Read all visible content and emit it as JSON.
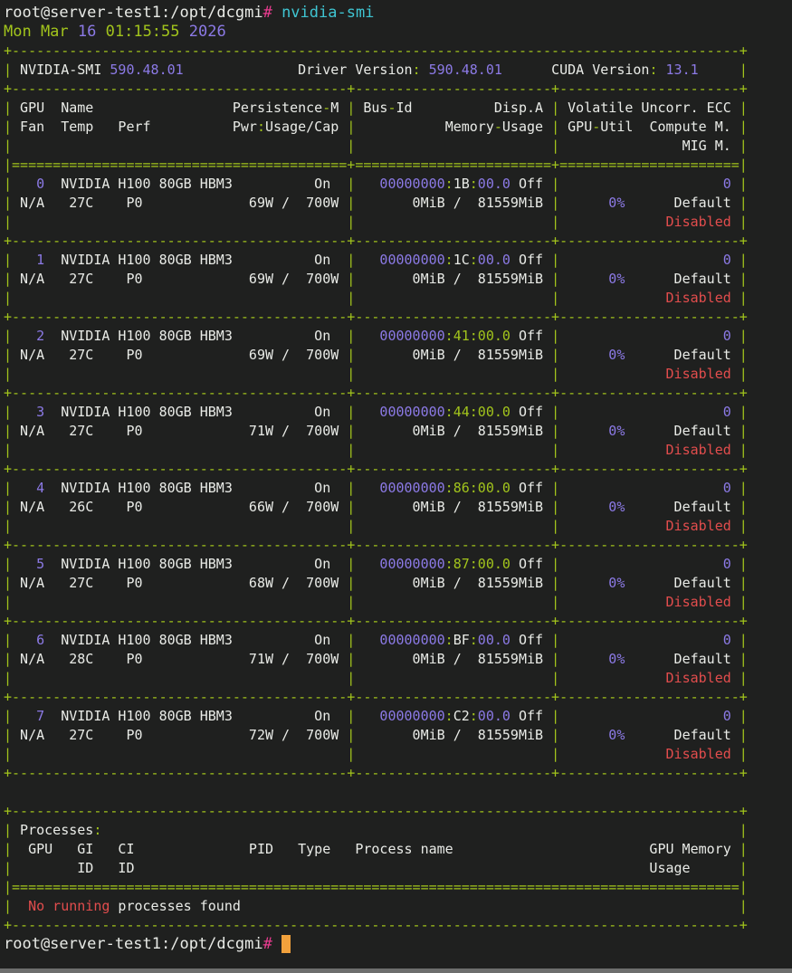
{
  "colors": {
    "background": "#1f201f",
    "foreground": "#e9ebe7",
    "border_green": "#a2c41c",
    "number_purple": "#8c7ae6",
    "alert_red": "#e24d4d",
    "command_cyan": "#3fc5d2",
    "prompt_magenta": "#e93c8f",
    "cursor_orange": "#f1a13c"
  },
  "prompt": {
    "user_host_path": "root@server-test1:/opt/dcgmi",
    "symbol": "#",
    "command": "nvidia-smi"
  },
  "datetime": {
    "day_month": "Mon Mar",
    "date": "16",
    "time": "01:15:55",
    "year": "2026"
  },
  "smi_header": {
    "title": "NVIDIA-SMI",
    "version": "590.48.01",
    "driver_label": "Driver Version",
    "driver_version": "590.48.01",
    "cuda_label": "CUDA Version",
    "cuda_version": "13.1"
  },
  "table_headers": {
    "gpu_name": " GPU  Name",
    "persistence": "Persistence-M",
    "fan_temp_perf": " Fan  Temp   Perf",
    "pwr": "Pwr:Usage/Cap",
    "bus": "Bus-Id",
    "disp": "Disp.A",
    "memory": "Memory-Usage",
    "volatile": "Volatile Uncorr. ECC",
    "util": "GPU-Util",
    "compute": "Compute M.",
    "mig": "MIG M."
  },
  "gpus": [
    {
      "index": "0",
      "name": "NVIDIA H100 80GB HBM3",
      "persistence": "On",
      "bus_id": "00000000:1B:00.0",
      "disp": "Off",
      "ecc": "0",
      "fan": "N/A",
      "temp": "27C",
      "perf": "P0",
      "power": "69W",
      "power_cap": "700W",
      "mem_used": "0MiB",
      "mem_total": "81559MiB",
      "util": "0%",
      "compute_mode": "Default",
      "mig": "Disabled"
    },
    {
      "index": "1",
      "name": "NVIDIA H100 80GB HBM3",
      "persistence": "On",
      "bus_id": "00000000:1C:00.0",
      "disp": "Off",
      "ecc": "0",
      "fan": "N/A",
      "temp": "27C",
      "perf": "P0",
      "power": "69W",
      "power_cap": "700W",
      "mem_used": "0MiB",
      "mem_total": "81559MiB",
      "util": "0%",
      "compute_mode": "Default",
      "mig": "Disabled"
    },
    {
      "index": "2",
      "name": "NVIDIA H100 80GB HBM3",
      "persistence": "On",
      "bus_id": "00000000:41:00.0",
      "disp": "Off",
      "ecc": "0",
      "fan": "N/A",
      "temp": "27C",
      "perf": "P0",
      "power": "69W",
      "power_cap": "700W",
      "mem_used": "0MiB",
      "mem_total": "81559MiB",
      "util": "0%",
      "compute_mode": "Default",
      "mig": "Disabled"
    },
    {
      "index": "3",
      "name": "NVIDIA H100 80GB HBM3",
      "persistence": "On",
      "bus_id": "00000000:44:00.0",
      "disp": "Off",
      "ecc": "0",
      "fan": "N/A",
      "temp": "27C",
      "perf": "P0",
      "power": "71W",
      "power_cap": "700W",
      "mem_used": "0MiB",
      "mem_total": "81559MiB",
      "util": "0%",
      "compute_mode": "Default",
      "mig": "Disabled"
    },
    {
      "index": "4",
      "name": "NVIDIA H100 80GB HBM3",
      "persistence": "On",
      "bus_id": "00000000:86:00.0",
      "disp": "Off",
      "ecc": "0",
      "fan": "N/A",
      "temp": "26C",
      "perf": "P0",
      "power": "66W",
      "power_cap": "700W",
      "mem_used": "0MiB",
      "mem_total": "81559MiB",
      "util": "0%",
      "compute_mode": "Default",
      "mig": "Disabled"
    },
    {
      "index": "5",
      "name": "NVIDIA H100 80GB HBM3",
      "persistence": "On",
      "bus_id": "00000000:87:00.0",
      "disp": "Off",
      "ecc": "0",
      "fan": "N/A",
      "temp": "27C",
      "perf": "P0",
      "power": "68W",
      "power_cap": "700W",
      "mem_used": "0MiB",
      "mem_total": "81559MiB",
      "util": "0%",
      "compute_mode": "Default",
      "mig": "Disabled"
    },
    {
      "index": "6",
      "name": "NVIDIA H100 80GB HBM3",
      "persistence": "On",
      "bus_id": "00000000:BF:00.0",
      "disp": "Off",
      "ecc": "0",
      "fan": "N/A",
      "temp": "28C",
      "perf": "P0",
      "power": "71W",
      "power_cap": "700W",
      "mem_used": "0MiB",
      "mem_total": "81559MiB",
      "util": "0%",
      "compute_mode": "Default",
      "mig": "Disabled"
    },
    {
      "index": "7",
      "name": "NVIDIA H100 80GB HBM3",
      "persistence": "On",
      "bus_id": "00000000:C2:00.0",
      "disp": "Off",
      "ecc": "0",
      "fan": "N/A",
      "temp": "27C",
      "perf": "P0",
      "power": "72W",
      "power_cap": "700W",
      "mem_used": "0MiB",
      "mem_total": "81559MiB",
      "util": "0%",
      "compute_mode": "Default",
      "mig": "Disabled"
    }
  ],
  "processes": {
    "title": "Processes",
    "header_row1_left": "  GPU   GI   CI              PID   Type   Process name",
    "header_row1_right": "GPU Memory",
    "header_row2_left": "        ID   ID",
    "header_row2_right": "Usage",
    "empty_highlight": "No running",
    "empty_rest": " processes found"
  }
}
